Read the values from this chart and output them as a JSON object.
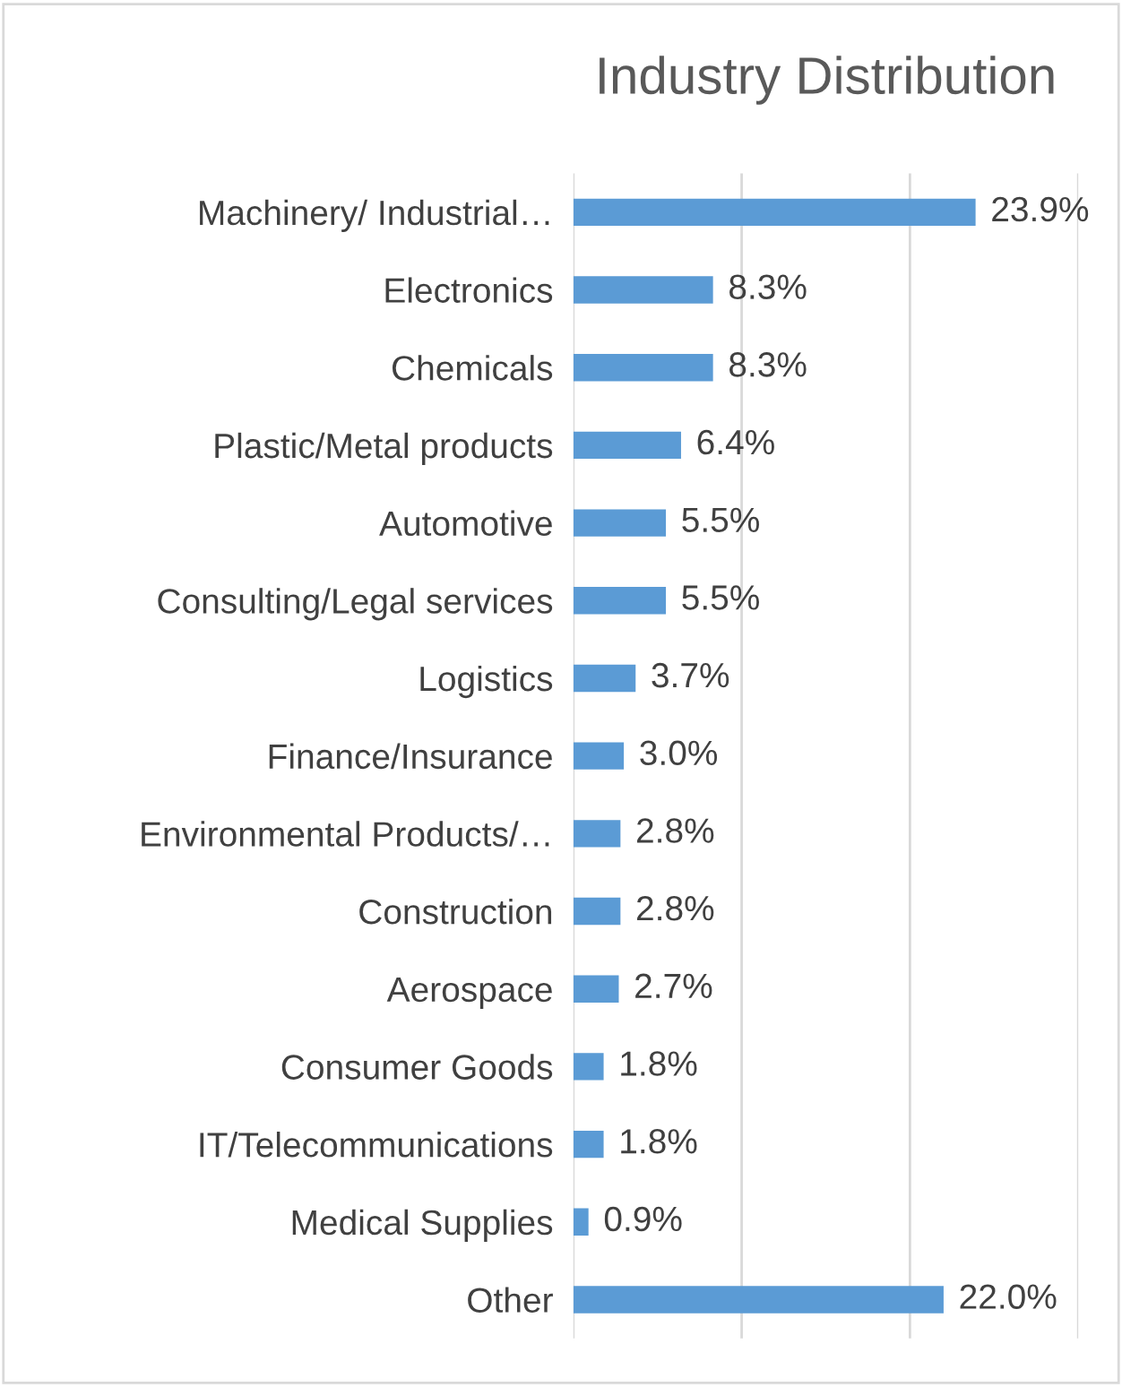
{
  "chart_data": {
    "type": "bar",
    "orientation": "horizontal",
    "title": "Industry Distribution",
    "categories": [
      "Machinery/ Industrial…",
      "Electronics",
      "Chemicals",
      "Plastic/Metal products",
      "Automotive",
      "Consulting/Legal services",
      "Logistics",
      "Finance/Insurance",
      "Environmental Products/…",
      "Construction",
      "Aerospace",
      "Consumer Goods",
      "IT/Telecommunications",
      "Medical Supplies",
      "Other"
    ],
    "values": [
      23.9,
      8.3,
      8.3,
      6.4,
      5.5,
      5.5,
      3.7,
      3.0,
      2.8,
      2.8,
      2.7,
      1.8,
      1.8,
      0.9,
      22.0
    ],
    "value_labels": [
      "23.9%",
      "8.3%",
      "8.3%",
      "6.4%",
      "5.5%",
      "5.5%",
      "3.7%",
      "3.0%",
      "2.8%",
      "2.8%",
      "2.7%",
      "1.8%",
      "1.8%",
      "0.9%",
      "22.0%"
    ],
    "color": "#5b9bd5",
    "xlim": [
      0,
      30
    ],
    "xticks": [
      {
        "value": 0,
        "label": null
      },
      {
        "value": 10,
        "label": null
      },
      {
        "value": 20,
        "label": null
      },
      {
        "value": 30,
        "label": null
      }
    ],
    "grid": "x",
    "tick_labels": "y"
  }
}
